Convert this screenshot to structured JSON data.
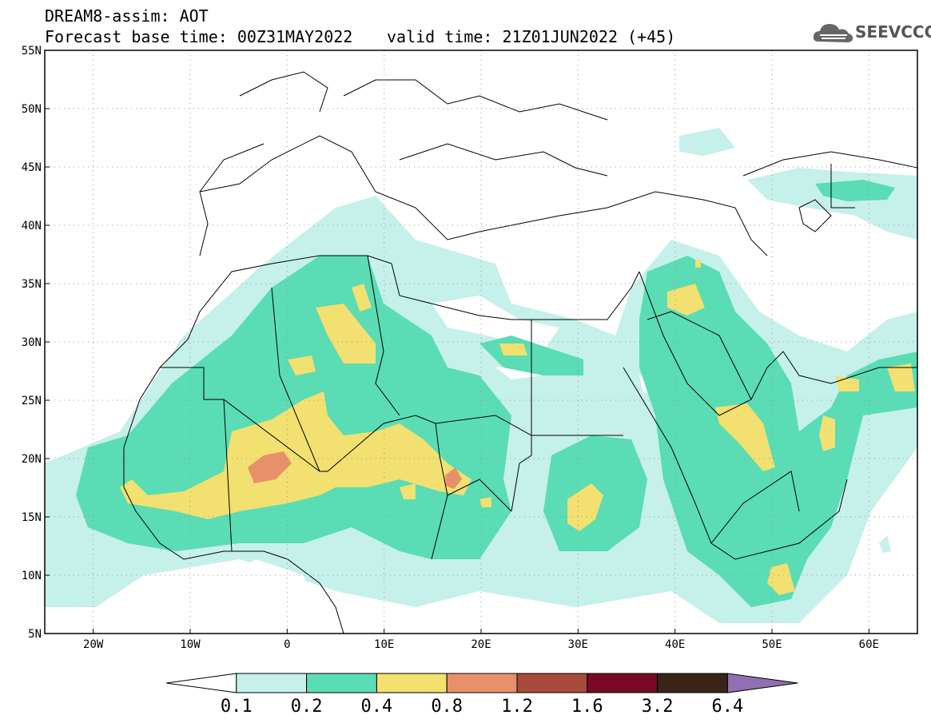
{
  "header": {
    "title_line1": "DREAM8-assim: AOT",
    "title_line2": "Forecast base time: 00Z31MAY2022",
    "valid_time": "valid time: 21Z01JUN2022 (+45)"
  },
  "logo": {
    "text": "SEEVCCC",
    "icon": "cloud-icon"
  },
  "map": {
    "lon_range": [
      -25,
      65
    ],
    "lat_range": [
      5,
      55
    ],
    "lon_ticks": [
      {
        "value": -20,
        "label": "20W"
      },
      {
        "value": -10,
        "label": "10W"
      },
      {
        "value": 0,
        "label": "0"
      },
      {
        "value": 10,
        "label": "10E"
      },
      {
        "value": 20,
        "label": "20E"
      },
      {
        "value": 30,
        "label": "30E"
      },
      {
        "value": 40,
        "label": "40E"
      },
      {
        "value": 50,
        "label": "50E"
      },
      {
        "value": 60,
        "label": "60E"
      }
    ],
    "lat_ticks": [
      {
        "value": 5,
        "label": "5N"
      },
      {
        "value": 10,
        "label": "10N"
      },
      {
        "value": 15,
        "label": "15N"
      },
      {
        "value": 20,
        "label": "20N"
      },
      {
        "value": 25,
        "label": "25N"
      },
      {
        "value": 30,
        "label": "30N"
      },
      {
        "value": 35,
        "label": "35N"
      },
      {
        "value": 40,
        "label": "40N"
      },
      {
        "value": 45,
        "label": "45N"
      },
      {
        "value": 50,
        "label": "50N"
      },
      {
        "value": 55,
        "label": "55N"
      }
    ]
  },
  "colorbar": {
    "levels": [
      "0.1",
      "0.2",
      "0.4",
      "0.8",
      "1.2",
      "1.6",
      "3.2",
      "6.4"
    ],
    "colors": [
      "#c6f0ea",
      "#5adcb4",
      "#f2e070",
      "#e8906a",
      "#a84a3a",
      "#780a28",
      "#3a2418",
      "#9070b0"
    ],
    "below_color": "#ffffff"
  }
}
